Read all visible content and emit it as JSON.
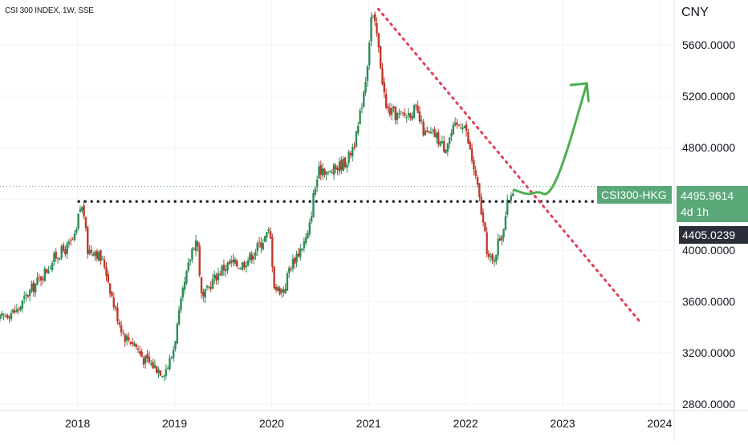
{
  "header": {
    "symbol_line": "CSI 300 INDEX, 1W, SSE",
    "currency": "CNY"
  },
  "colors": {
    "up": "#2e8b57",
    "down": "#c0392b",
    "trend": "#e0405a",
    "projection": "#4caf50",
    "support": "#131722",
    "label_green": "#5aa878",
    "label_dark": "#2a2e39"
  },
  "labels": {
    "symbol_tag": "CSI300-HKG",
    "price_tag": "4495.9614",
    "countdown": "4d 1h",
    "crosshair_price": "4405.0239"
  },
  "chart_data": {
    "type": "line",
    "title": "CSI 300 INDEX, 1W, SSE",
    "ylabel": "CNY",
    "ylim": [
      2750,
      5950
    ],
    "xlim": [
      2017.2,
      2024.15
    ],
    "x_ticks": [
      "2018",
      "2019",
      "2020",
      "2021",
      "2022",
      "2023",
      "2024"
    ],
    "y_ticks": [
      "5600.0000",
      "5200.0000",
      "4800.0000",
      "4400.0000",
      "4000.0000",
      "3600.0000",
      "3200.0000",
      "2800.0000"
    ],
    "grid": true,
    "series": [
      {
        "x": [
          2017.2,
          2017.3,
          2017.4,
          2017.5,
          2017.6,
          2017.7,
          2017.8,
          2017.9,
          2018.0,
          2018.04,
          2018.08,
          2018.12,
          2018.2,
          2018.3,
          2018.4,
          2018.5,
          2018.6,
          2018.7,
          2018.8,
          2018.9,
          2018.95,
          2019.0,
          2019.1,
          2019.2,
          2019.25,
          2019.3,
          2019.4,
          2019.5,
          2019.6,
          2019.7,
          2019.8,
          2019.9,
          2020.0,
          2020.05,
          2020.15,
          2020.2,
          2020.3,
          2020.4,
          2020.45,
          2020.5,
          2020.55,
          2020.6,
          2020.7,
          2020.8,
          2020.9,
          2021.0,
          2021.05,
          2021.1,
          2021.15,
          2021.2,
          2021.3,
          2021.4,
          2021.5,
          2021.6,
          2021.7,
          2021.8,
          2021.9,
          2022.0,
          2022.1,
          2022.15,
          2022.2,
          2022.25,
          2022.3,
          2022.35,
          2022.4,
          2022.45,
          2022.5
        ],
        "values": [
          3450,
          3510,
          3530,
          3650,
          3750,
          3850,
          3960,
          4010,
          4100,
          4330,
          4320,
          4000,
          4000,
          3880,
          3550,
          3330,
          3280,
          3150,
          3100,
          3050,
          3100,
          3200,
          3650,
          4010,
          4100,
          3600,
          3750,
          3850,
          3900,
          3880,
          3950,
          4050,
          4150,
          3700,
          3690,
          3860,
          3990,
          4120,
          4420,
          4600,
          4650,
          4590,
          4650,
          4700,
          4900,
          5400,
          5850,
          5700,
          5400,
          5100,
          5050,
          5050,
          5100,
          4900,
          4900,
          4800,
          4950,
          5000,
          4650,
          4450,
          4200,
          3950,
          3900,
          4050,
          4150,
          4350,
          4480
        ]
      }
    ],
    "annotations": {
      "support_level": 4380,
      "trendline": {
        "from": [
          2021.1,
          5880
        ],
        "to": [
          2023.8,
          3440
        ]
      },
      "projection": [
        [
          2022.5,
          4470
        ],
        [
          2022.65,
          4430
        ],
        [
          2022.75,
          4460
        ],
        [
          2022.85,
          4420
        ],
        [
          2023.0,
          4650
        ],
        [
          2023.25,
          5300
        ]
      ],
      "last_price": 4495.9614,
      "crosshair_price": 4405.0239
    }
  }
}
